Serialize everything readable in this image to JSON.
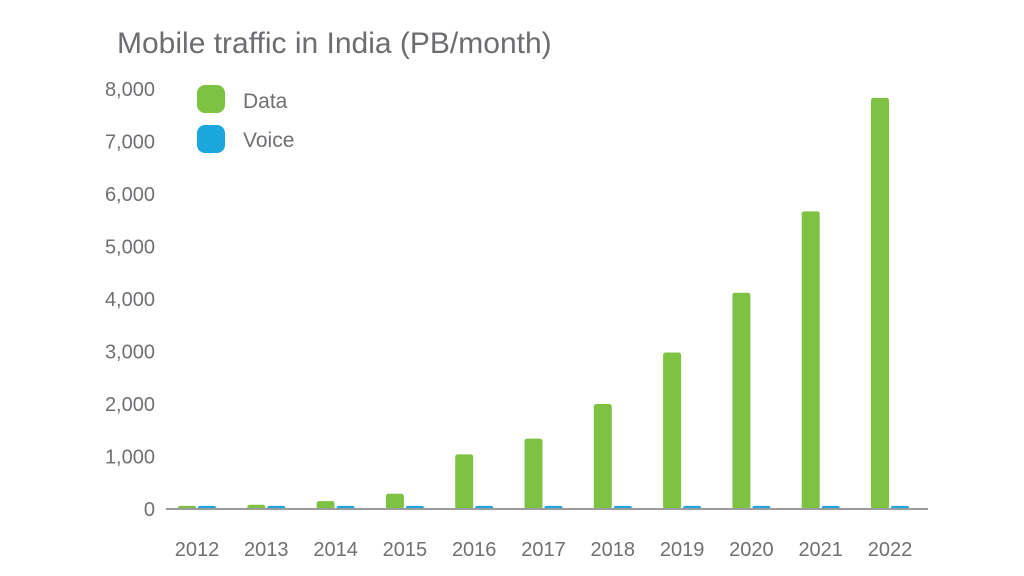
{
  "chart_data": {
    "type": "bar",
    "title": "Mobile traffic in India (PB/month)",
    "xlabel": "",
    "ylabel": "",
    "categories": [
      "2012",
      "2013",
      "2014",
      "2015",
      "2016",
      "2017",
      "2018",
      "2019",
      "2020",
      "2021",
      "2022"
    ],
    "series": [
      {
        "name": "Data",
        "color": "#7dc242",
        "values": [
          60,
          80,
          150,
          290,
          1040,
          1340,
          2000,
          2980,
          4120,
          5670,
          7830
        ]
      },
      {
        "name": "Voice",
        "color": "#1ba7dd",
        "values": [
          60,
          60,
          60,
          60,
          60,
          60,
          60,
          60,
          60,
          60,
          60
        ]
      }
    ],
    "yticks": [
      0,
      1000,
      2000,
      3000,
      4000,
      5000,
      6000,
      7000,
      8000
    ],
    "ytick_labels": [
      "0",
      "1,000",
      "2,000",
      "3,000",
      "4,000",
      "5,000",
      "6,000",
      "7,000",
      "8,000"
    ],
    "ylim": [
      0,
      8000
    ],
    "grid": false,
    "legend_position": "top-left"
  }
}
